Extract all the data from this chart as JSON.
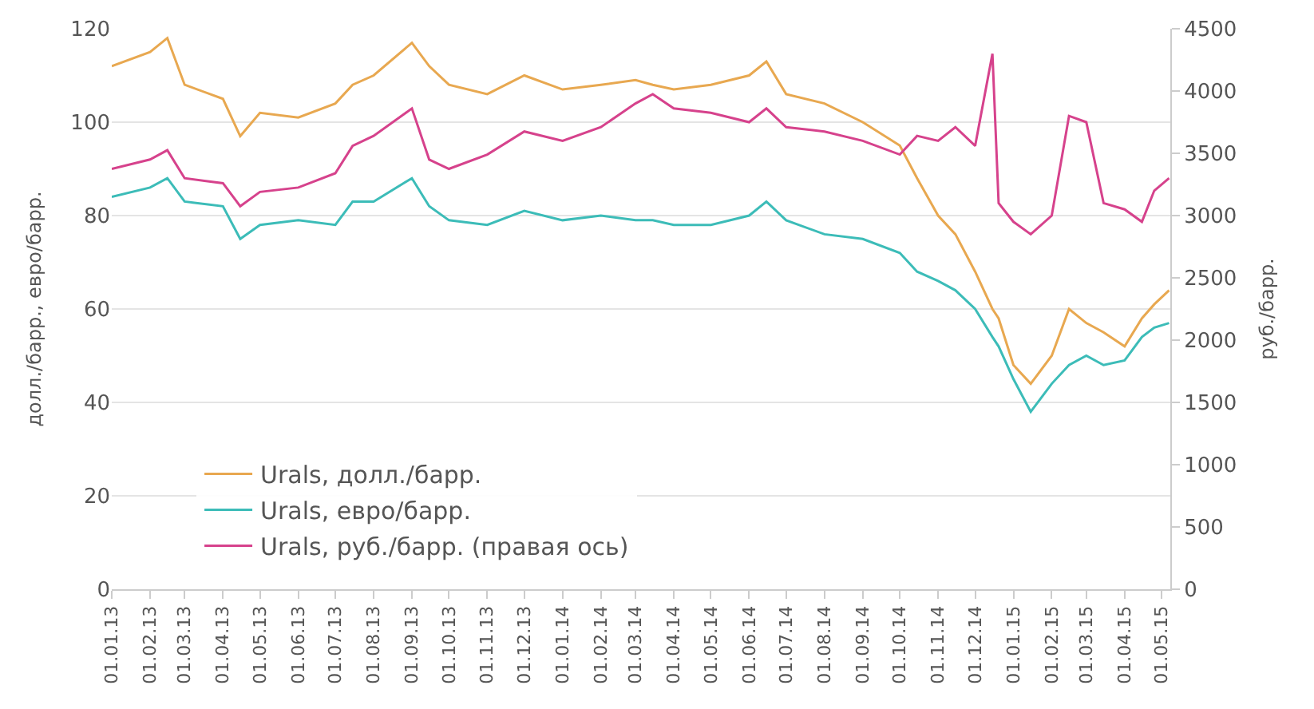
{
  "chart_data": {
    "type": "line",
    "ylabel": "долл./барр., евро/барр.",
    "y2label": "руб./барр.",
    "xlim": [
      "2013-01-01",
      "2015-05-08"
    ],
    "xticks": [
      {
        "value": "2013-01-01",
        "label": "01.01.13"
      },
      {
        "value": "2013-02-01",
        "label": "01.02.13"
      },
      {
        "value": "2013-03-01",
        "label": "01.03.13"
      },
      {
        "value": "2013-04-01",
        "label": "01.04.13"
      },
      {
        "value": "2013-05-01",
        "label": "01.05.13"
      },
      {
        "value": "2013-06-01",
        "label": "01.06.13"
      },
      {
        "value": "2013-07-01",
        "label": "01.07.13"
      },
      {
        "value": "2013-08-01",
        "label": "01.08.13"
      },
      {
        "value": "2013-09-01",
        "label": "01.09.13"
      },
      {
        "value": "2013-10-01",
        "label": "01.10.13"
      },
      {
        "value": "2013-11-01",
        "label": "01.11.13"
      },
      {
        "value": "2013-12-01",
        "label": "01.12.13"
      },
      {
        "value": "2014-01-01",
        "label": "01.01.14"
      },
      {
        "value": "2014-02-01",
        "label": "01.02.14"
      },
      {
        "value": "2014-03-01",
        "label": "01.03.14"
      },
      {
        "value": "2014-04-01",
        "label": "01.04.14"
      },
      {
        "value": "2014-05-01",
        "label": "01.05.14"
      },
      {
        "value": "2014-06-01",
        "label": "01.06.14"
      },
      {
        "value": "2014-07-01",
        "label": "01.07.14"
      },
      {
        "value": "2014-08-01",
        "label": "01.08.14"
      },
      {
        "value": "2014-09-01",
        "label": "01.09.14"
      },
      {
        "value": "2014-10-01",
        "label": "01.10.14"
      },
      {
        "value": "2014-11-01",
        "label": "01.11.14"
      },
      {
        "value": "2014-12-01",
        "label": "01.12.14"
      },
      {
        "value": "2015-01-01",
        "label": "01.01.15"
      },
      {
        "value": "2015-02-01",
        "label": "01.02.15"
      },
      {
        "value": "2015-03-01",
        "label": "01.03.15"
      },
      {
        "value": "2015-04-01",
        "label": "01.04.15"
      },
      {
        "value": "2015-05-01",
        "label": "01.05.15"
      }
    ],
    "ylim": [
      0,
      120
    ],
    "yticks": [
      0,
      20,
      40,
      60,
      80,
      100,
      120
    ],
    "y2lim": [
      0,
      4500
    ],
    "y2ticks": [
      0,
      500,
      1000,
      1500,
      2000,
      2500,
      3000,
      3500,
      4000,
      4500
    ],
    "grid": "y",
    "legend": "bottom left",
    "line_style": "solid",
    "marker": "none",
    "x": [
      "2013-01-01",
      "2013-02-01",
      "2013-02-15",
      "2013-03-01",
      "2013-04-01",
      "2013-04-15",
      "2013-05-01",
      "2013-06-01",
      "2013-07-01",
      "2013-07-15",
      "2013-08-01",
      "2013-09-01",
      "2013-09-15",
      "2013-10-01",
      "2013-11-01",
      "2013-12-01",
      "2014-01-01",
      "2014-02-01",
      "2014-03-01",
      "2014-03-15",
      "2014-04-01",
      "2014-05-01",
      "2014-06-01",
      "2014-06-15",
      "2014-07-01",
      "2014-08-01",
      "2014-09-01",
      "2014-10-01",
      "2014-10-15",
      "2014-11-01",
      "2014-11-15",
      "2014-12-01",
      "2014-12-15",
      "2014-12-20",
      "2015-01-01",
      "2015-01-15",
      "2015-02-01",
      "2015-02-15",
      "2015-03-01",
      "2015-03-15",
      "2015-04-01",
      "2015-04-15",
      "2015-04-25",
      "2015-05-07"
    ],
    "series": [
      {
        "name": "Urals, долл./барр.",
        "color": "#e8a850",
        "values": [
          112,
          115,
          118,
          108,
          105,
          97,
          102,
          101,
          104,
          108,
          110,
          117,
          112,
          108,
          106,
          110,
          107,
          108,
          109,
          108,
          107,
          108,
          110,
          113,
          106,
          104,
          100,
          95,
          88,
          80,
          76,
          68,
          60,
          58,
          48,
          44,
          50,
          60,
          57,
          55,
          52,
          58,
          61,
          64
        ]
      },
      {
        "name": "Urals, евро/барр.",
        "color": "#3cbcb8",
        "values": [
          84,
          86,
          88,
          83,
          82,
          75,
          78,
          79,
          78,
          83,
          83,
          88,
          82,
          79,
          78,
          81,
          79,
          80,
          79,
          79,
          78,
          78,
          80,
          83,
          79,
          76,
          75,
          72,
          68,
          66,
          64,
          60,
          54,
          52,
          45,
          38,
          44,
          48,
          50,
          48,
          49,
          54,
          56,
          57
        ]
      },
      {
        "name": "Urals, руб./барр. (правая ось)",
        "color": "#d6428c",
        "axis": "y2",
        "values": [
          3375,
          3450,
          3525,
          3300,
          3260,
          3075,
          3190,
          3225,
          3340,
          3560,
          3640,
          3860,
          3450,
          3375,
          3490,
          3675,
          3600,
          3710,
          3900,
          3975,
          3860,
          3825,
          3750,
          3860,
          3710,
          3675,
          3600,
          3490,
          3640,
          3600,
          3710,
          3560,
          4300,
          3100,
          2950,
          2850,
          3000,
          3800,
          3750,
          3100,
          3050,
          2950,
          3200,
          3300
        ]
      }
    ]
  }
}
